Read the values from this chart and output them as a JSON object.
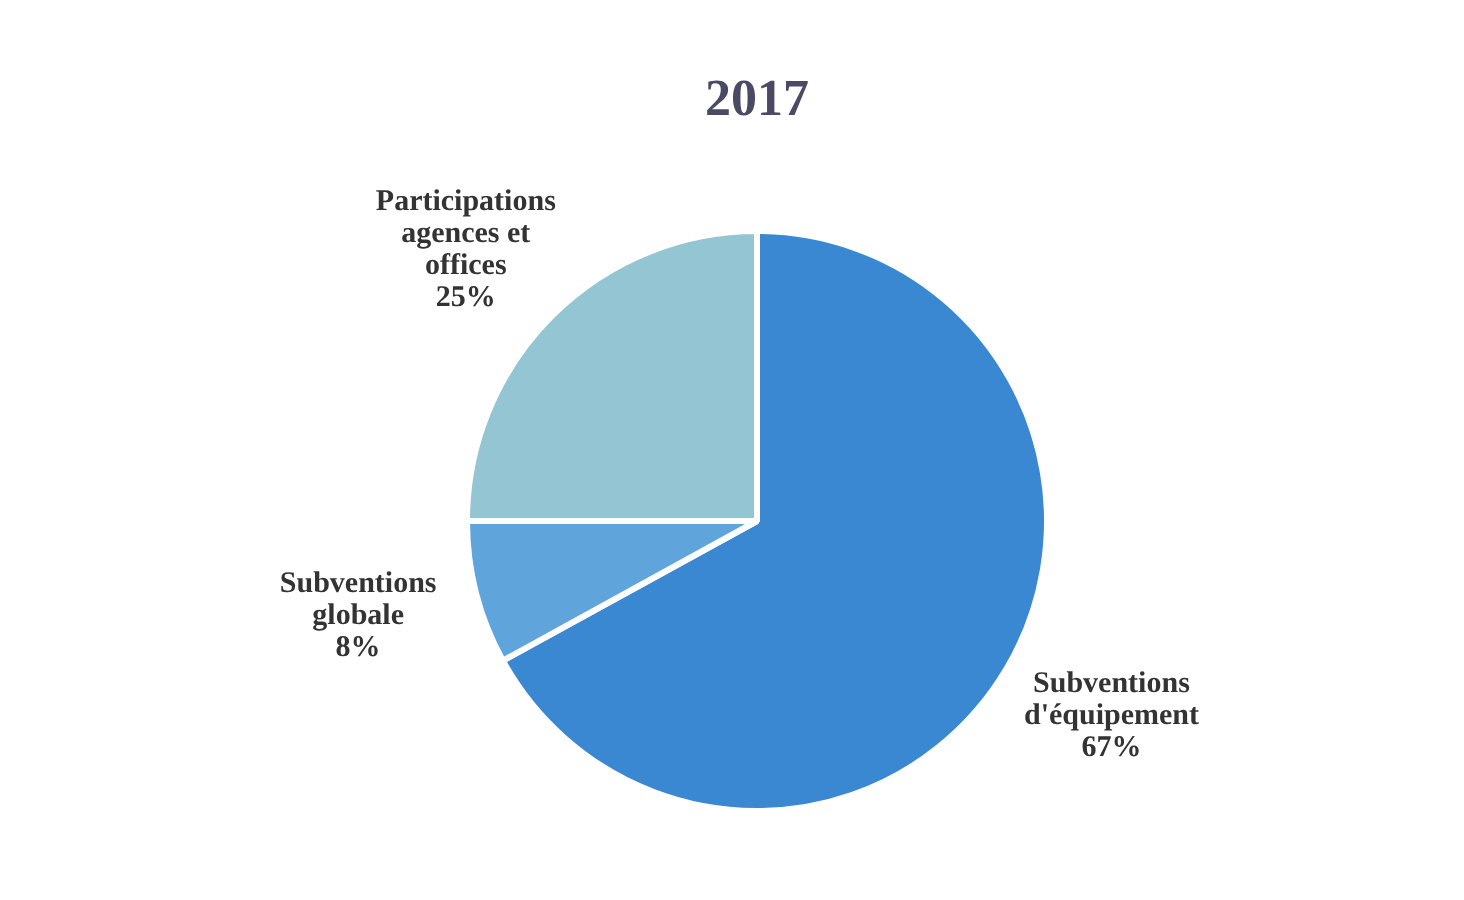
{
  "chart_data": {
    "type": "pie",
    "title": "2017",
    "categories": [
      "Subventions d'équipement",
      "Subventions globale",
      "Participations agences et offices"
    ],
    "values": [
      67,
      8,
      25
    ],
    "value_labels": [
      "67%",
      "8%",
      "25%"
    ],
    "colors": [
      "#3a88d2",
      "#5fa5dc",
      "#93c5d3"
    ]
  }
}
